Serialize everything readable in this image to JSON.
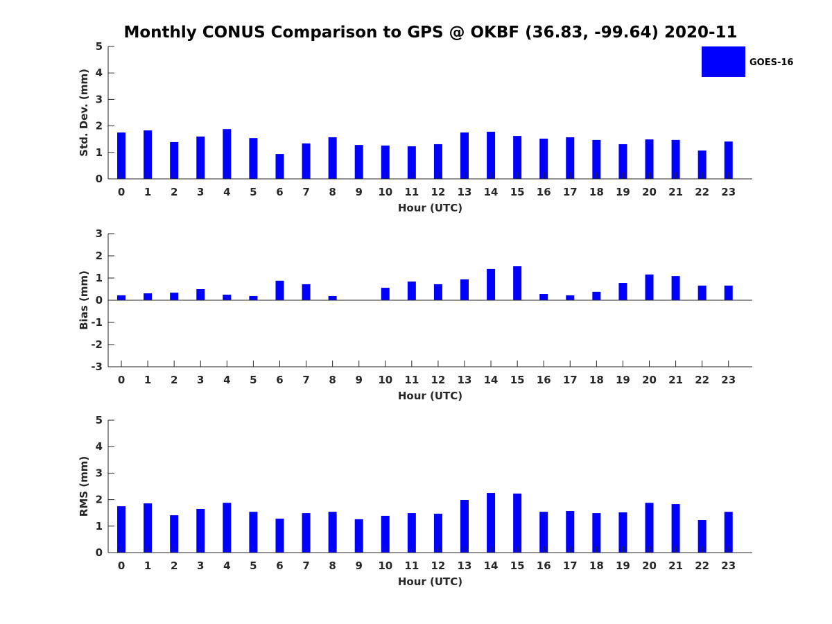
{
  "title": "Monthly CONUS Comparison to GPS @ OKBF (36.83, -99.64) 2020-11",
  "legend": {
    "label": "GOES-16",
    "color": "#0000ff",
    "placement": "top-right"
  },
  "chart_data": [
    {
      "type": "bar",
      "xlabel": "Hour (UTC)",
      "ylabel": "Std. Dev. (mm)",
      "ylim": [
        0,
        5
      ],
      "yticks": [
        0,
        1,
        2,
        3,
        4,
        5
      ],
      "categories": [
        "0",
        "1",
        "2",
        "3",
        "4",
        "5",
        "6",
        "7",
        "8",
        "9",
        "10",
        "11",
        "12",
        "13",
        "14",
        "15",
        "16",
        "17",
        "18",
        "19",
        "20",
        "21",
        "22",
        "23"
      ],
      "series": [
        {
          "name": "GOES-16",
          "values": [
            1.75,
            1.83,
            1.39,
            1.6,
            1.88,
            1.54,
            0.94,
            1.34,
            1.57,
            1.28,
            1.26,
            1.23,
            1.31,
            1.75,
            1.78,
            1.62,
            1.52,
            1.57,
            1.47,
            1.31,
            1.49,
            1.47,
            1.07,
            1.41
          ]
        }
      ]
    },
    {
      "type": "bar",
      "xlabel": "Hour (UTC)",
      "ylabel": "Bias (mm)",
      "ylim": [
        -3,
        3
      ],
      "yticks": [
        -3,
        -2,
        -1,
        0,
        1,
        2,
        3
      ],
      "categories": [
        "0",
        "1",
        "2",
        "3",
        "4",
        "5",
        "6",
        "7",
        "8",
        "9",
        "10",
        "11",
        "12",
        "13",
        "14",
        "15",
        "16",
        "17",
        "18",
        "19",
        "20",
        "21",
        "22",
        "23"
      ],
      "series": [
        {
          "name": "GOES-16",
          "values": [
            0.22,
            0.31,
            0.34,
            0.5,
            0.25,
            0.19,
            0.88,
            0.72,
            0.19,
            0,
            0.56,
            0.84,
            0.72,
            0.94,
            1.41,
            1.53,
            0.28,
            0.22,
            0.38,
            0.78,
            1.16,
            1.09,
            0.66,
            0.66
          ]
        }
      ]
    },
    {
      "type": "bar",
      "xlabel": "Hour (UTC)",
      "ylabel": "RMS (mm)",
      "ylim": [
        0,
        5
      ],
      "yticks": [
        0,
        1,
        2,
        3,
        4,
        5
      ],
      "categories": [
        "0",
        "1",
        "2",
        "3",
        "4",
        "5",
        "6",
        "7",
        "8",
        "9",
        "10",
        "11",
        "12",
        "13",
        "14",
        "15",
        "16",
        "17",
        "18",
        "19",
        "20",
        "21",
        "22",
        "23"
      ],
      "series": [
        {
          "name": "GOES-16",
          "values": [
            1.75,
            1.86,
            1.41,
            1.65,
            1.88,
            1.54,
            1.28,
            1.49,
            1.54,
            1.26,
            1.39,
            1.49,
            1.47,
            1.99,
            2.25,
            2.23,
            1.54,
            1.57,
            1.49,
            1.52,
            1.88,
            1.83,
            1.23,
            1.54
          ]
        }
      ]
    }
  ]
}
